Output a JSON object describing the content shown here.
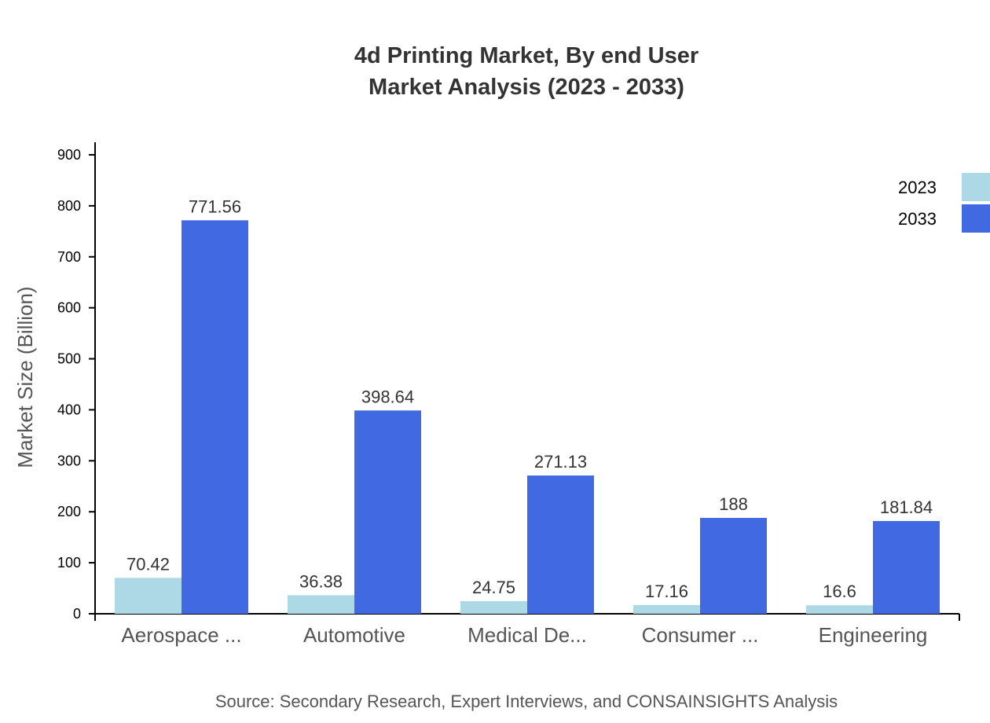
{
  "chart_data": {
    "type": "bar",
    "title": "4d Printing Market, By end User",
    "subtitle": "Market Analysis (2023 - 2033)",
    "ylabel": "Market Size (Billion)",
    "xlabel": "",
    "ylim": [
      0,
      900
    ],
    "yticks": [
      0,
      100,
      200,
      300,
      400,
      500,
      600,
      700,
      800,
      900
    ],
    "categories": [
      "Aerospace ...",
      "Automotive",
      "Medical De...",
      "Consumer ...",
      "Engineering"
    ],
    "series": [
      {
        "name": "2023",
        "color": "#add8e6",
        "values": [
          70.42,
          36.38,
          24.75,
          17.16,
          16.6
        ]
      },
      {
        "name": "2033",
        "color": "#4169e1",
        "values": [
          771.56,
          398.64,
          271.13,
          188,
          181.84
        ]
      }
    ],
    "legend": "top-right",
    "grid": false,
    "source": "Source: Secondary Research, Expert Interviews, and CONSAINSIGHTS Analysis"
  }
}
